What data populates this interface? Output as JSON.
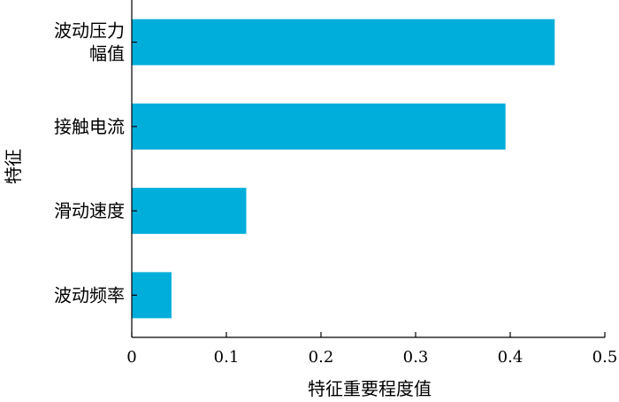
{
  "chart_data": {
    "type": "bar",
    "orientation": "horizontal",
    "categories": [
      "波动压力幅值",
      "接触电流",
      "滑动速度",
      "波动频率"
    ],
    "category_lines": [
      [
        "波动压力",
        "幅值"
      ],
      [
        "接触电流"
      ],
      [
        "滑动速度"
      ],
      [
        "波动频率"
      ]
    ],
    "values": [
      0.447,
      0.395,
      0.121,
      0.042
    ],
    "xlabel": "特征重要程度值",
    "ylabel": "特征",
    "xlim": [
      0,
      0.5
    ],
    "xticks": [
      "0",
      "0.1",
      "0.2",
      "0.3",
      "0.4",
      "0.5"
    ],
    "bar_color": "#00aedb",
    "grid": false
  }
}
